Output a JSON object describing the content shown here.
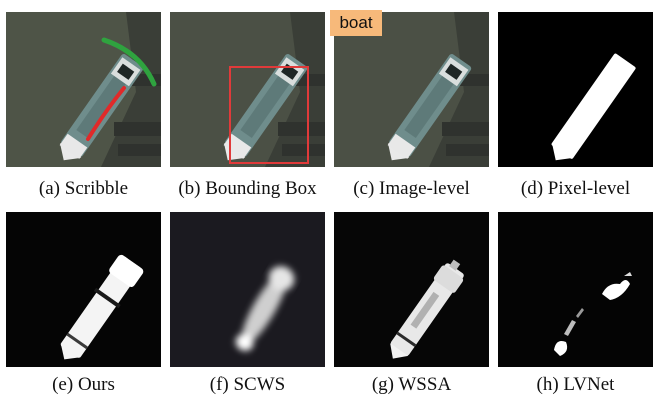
{
  "figure": {
    "image_level_tag": "boat",
    "colors": {
      "scribble_ship": "#e02a2a",
      "scribble_water": "#2fa33f",
      "bounding_box": "#e03a3a",
      "tag_background": "#f7b97a"
    },
    "panels": [
      {
        "id": "a",
        "caption": "(a) Scribble",
        "kind": "photo",
        "overlay": "scribble"
      },
      {
        "id": "b",
        "caption": "(b) Bounding Box",
        "kind": "photo",
        "overlay": "bounding-box"
      },
      {
        "id": "c",
        "caption": "(c) Image-level",
        "kind": "photo",
        "overlay": "image-tag"
      },
      {
        "id": "d",
        "caption": "(d) Pixel-level",
        "kind": "mask",
        "overlay": "none"
      },
      {
        "id": "e",
        "caption": "(e) Ours",
        "kind": "mask",
        "overlay": "none"
      },
      {
        "id": "f",
        "caption": "(f) SCWS",
        "kind": "mask",
        "overlay": "none"
      },
      {
        "id": "g",
        "caption": "(g) WSSA",
        "kind": "mask",
        "overlay": "none"
      },
      {
        "id": "h",
        "caption": "(h) LVNet",
        "kind": "mask",
        "overlay": "none"
      }
    ]
  }
}
